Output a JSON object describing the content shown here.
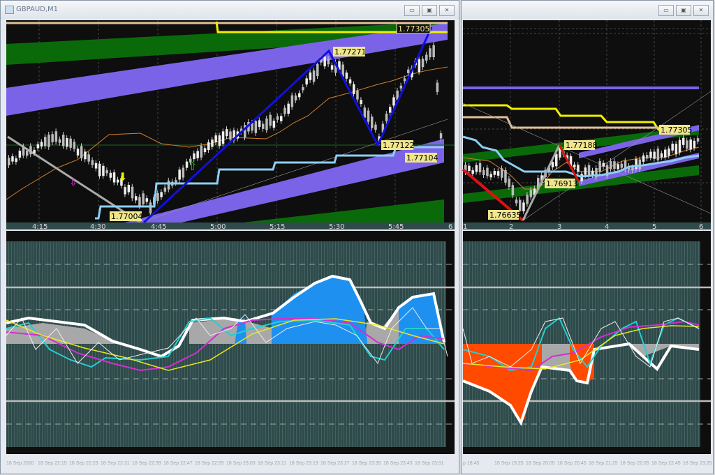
{
  "left_window": {
    "title": "GBPAUD,M1",
    "buttons": {
      "minimize": "▭",
      "restore": "▣",
      "close": "✕"
    },
    "price_labels": [
      "1.77305",
      "1.77271",
      "1.77122",
      "1.77104",
      "1.77004"
    ],
    "time_labels": [
      "4:15",
      "4:30",
      "4:45",
      "5:00",
      "5:15",
      "5:30",
      "5:45",
      "6"
    ],
    "date_labels": [
      "18 Sep 2020",
      "18 Sep 22:15",
      "18 Sep 22:23",
      "18 Sep 22:31",
      "18 Sep 22:39",
      "18 Sep 22:47",
      "18 Sep 22:55",
      "18 Sep 23:03",
      "18 Sep 23:11",
      "18 Sep 23:19",
      "18 Sep 23:27",
      "18 Sep 23:35",
      "18 Sep 23:43",
      "18 Sep 23:51"
    ]
  },
  "right_window": {
    "buttons": {
      "minimize": "▭",
      "restore": "▣",
      "close": "✕"
    },
    "price_labels": [
      "1.77305",
      "1.77188",
      "1.76913",
      "1.76635"
    ],
    "time_labels": [
      "1",
      "2",
      "3",
      "4",
      "5",
      "6"
    ],
    "date_labels": [
      "p 18:45",
      "18 Sep 19:25",
      "18 Sep 20:05",
      "18 Sep 20:45",
      "18 Sep 21:25",
      "18 Sep 22:05",
      "18 Sep 22:45",
      "18 Sep 23:25"
    ]
  },
  "colors": {
    "chart_bg": "#0e0e0e",
    "indicator_bg": "#2f4a4a",
    "band_green": "#0a6a0a",
    "band_purple": "#7b63e8",
    "zigzag_blue": "#1010e0",
    "zigzag_red": "#e01010",
    "step_lightblue": "#8ccff2",
    "yellow": "#f0f000",
    "tan": "#e2c09a",
    "fill_blue": "#1e90f0",
    "fill_orange": "#ff4a00",
    "label_bg": "#f0e68c"
  }
}
